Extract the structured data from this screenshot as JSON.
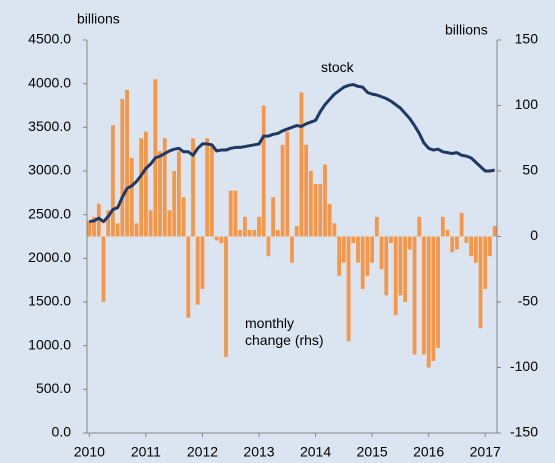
{
  "chart_data": {
    "type": "combo",
    "y_label": "billions",
    "y2_label": "billions",
    "categories": [
      "2010",
      null,
      null,
      null,
      null,
      null,
      null,
      null,
      null,
      null,
      null,
      null,
      "2011",
      null,
      null,
      null,
      null,
      null,
      null,
      null,
      null,
      null,
      null,
      null,
      "2012",
      null,
      null,
      null,
      null,
      null,
      null,
      null,
      null,
      null,
      null,
      null,
      "2013",
      null,
      null,
      null,
      null,
      null,
      null,
      null,
      null,
      null,
      null,
      null,
      "2014",
      null,
      null,
      null,
      null,
      null,
      null,
      null,
      null,
      null,
      null,
      null,
      "2015",
      null,
      null,
      null,
      null,
      null,
      null,
      null,
      null,
      null,
      null,
      null,
      "2016",
      null,
      null,
      null,
      null,
      null,
      null,
      null,
      null,
      null,
      null,
      null,
      "2017",
      null,
      null
    ],
    "series": [
      {
        "name": "monthly change (rhs)",
        "type": "bar",
        "axis": "y2",
        "color": "#f79646",
        "values": [
          12,
          15,
          25,
          -50,
          20,
          85,
          10,
          105,
          112,
          60,
          10,
          75,
          80,
          20,
          120,
          65,
          75,
          20,
          50,
          65,
          30,
          -62,
          75,
          -52,
          -40,
          75,
          70,
          -3,
          -5,
          -92,
          35,
          35,
          5,
          15,
          5,
          5,
          15,
          100,
          -15,
          30,
          5,
          70,
          80,
          -20,
          8,
          110,
          70,
          50,
          40,
          40,
          55,
          25,
          10,
          -30,
          -20,
          -80,
          -5,
          -20,
          -40,
          -30,
          -20,
          15,
          -25,
          -45,
          -5,
          -60,
          -45,
          -50,
          -10,
          -90,
          15,
          -90,
          -100,
          -95,
          -85,
          15,
          5,
          -12,
          -10,
          18,
          -5,
          -15,
          -20,
          -70,
          -40,
          -15,
          8
        ]
      },
      {
        "name": "stock",
        "type": "line",
        "color": "#1f3864",
        "values": [
          2420,
          2430,
          2460,
          2420,
          2480,
          2560,
          2580,
          2700,
          2800,
          2830,
          2880,
          2950,
          3030,
          3080,
          3150,
          3170,
          3200,
          3230,
          3250,
          3260,
          3220,
          3220,
          3180,
          3260,
          3310,
          3310,
          3300,
          3230,
          3240,
          3240,
          3260,
          3270,
          3270,
          3280,
          3290,
          3300,
          3310,
          3400,
          3400,
          3420,
          3430,
          3460,
          3480,
          3500,
          3520,
          3510,
          3540,
          3560,
          3580,
          3680,
          3760,
          3820,
          3880,
          3920,
          3960,
          3980,
          3990,
          3970,
          3960,
          3900,
          3880,
          3870,
          3850,
          3830,
          3800,
          3760,
          3720,
          3660,
          3600,
          3520,
          3430,
          3320,
          3260,
          3240,
          3250,
          3220,
          3210,
          3200,
          3210,
          3180,
          3170,
          3150,
          3100,
          3050,
          3000,
          3000,
          3010
        ]
      }
    ],
    "ylim": [
      0,
      4500
    ],
    "yticks": [
      {
        "value": 0,
        "label": "0.0"
      },
      {
        "value": 500,
        "label": "500.0"
      },
      {
        "value": 1000,
        "label": "1000.0"
      },
      {
        "value": 1500,
        "label": "1500.0"
      },
      {
        "value": 2000,
        "label": "2000.0"
      },
      {
        "value": 2500,
        "label": "2500.0"
      },
      {
        "value": 3000,
        "label": "3000.0"
      },
      {
        "value": 3500,
        "label": "3500.0"
      },
      {
        "value": 4000,
        "label": "4000.0"
      },
      {
        "value": 4500,
        "label": "4500.0"
      }
    ],
    "y2lim": [
      -150,
      150
    ],
    "y2ticks": [
      -150,
      -100,
      -50,
      0,
      50,
      100,
      150
    ],
    "grid": false
  }
}
